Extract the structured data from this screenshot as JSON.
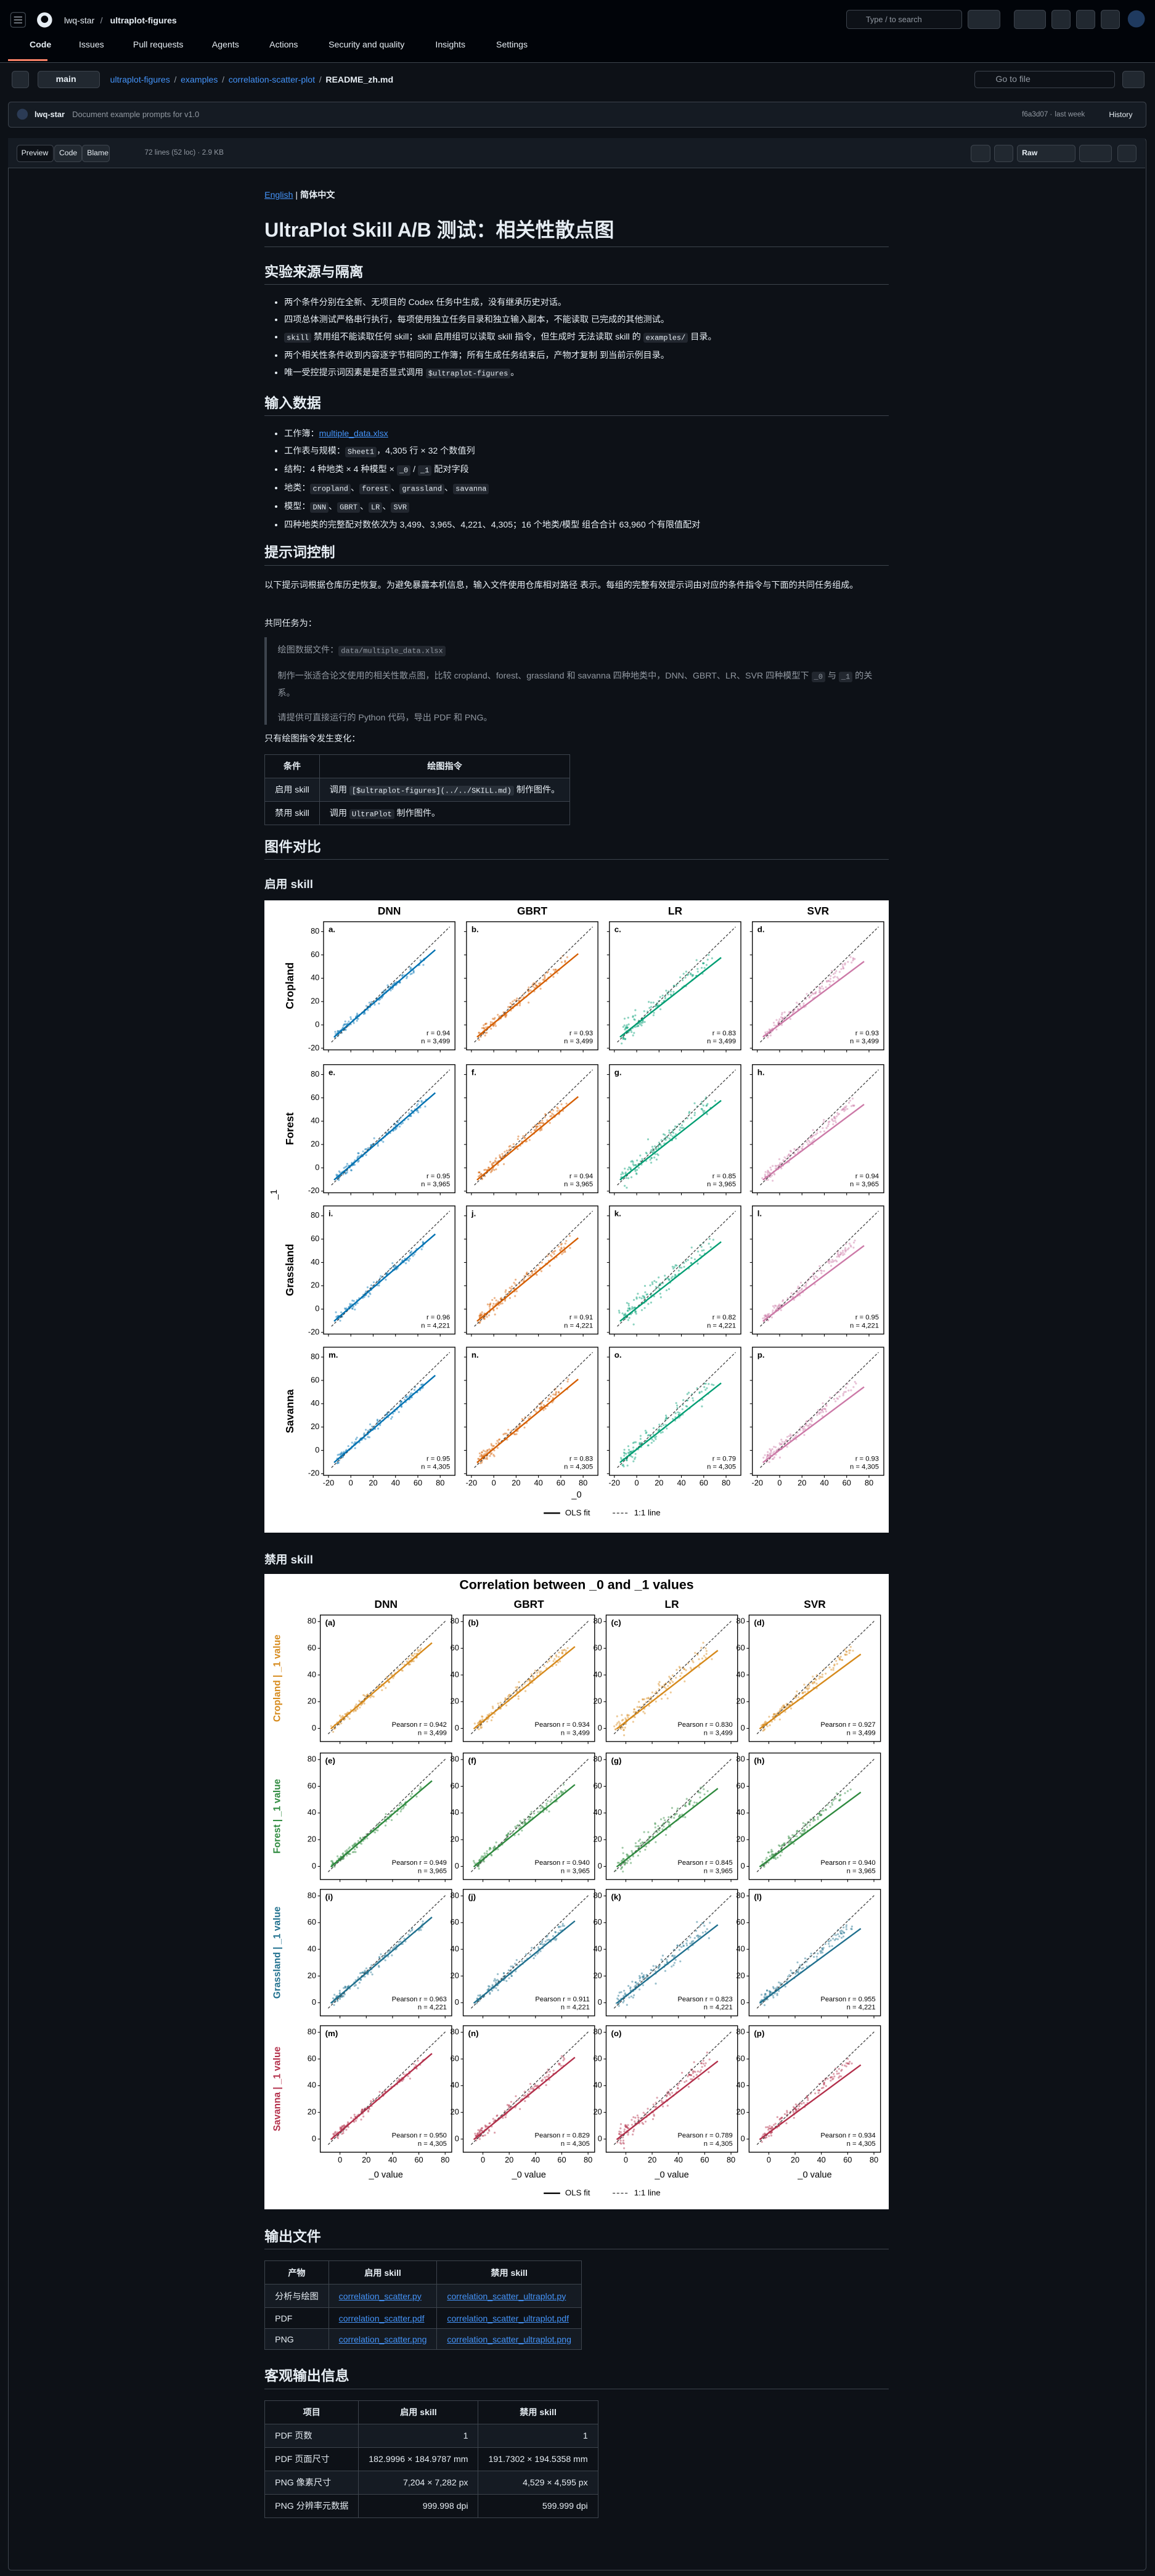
{
  "header": {
    "owner": "lwq-star",
    "repo": "ultraplot-figures",
    "search": "Type / to search",
    "tabs": [
      "Code",
      "Issues",
      "Pull requests",
      "Agents",
      "Actions",
      "Security and quality",
      "Insights",
      "Settings"
    ]
  },
  "file_bar": {
    "branch": "main",
    "path": [
      "ultraplot-figures",
      "examples",
      "correlation-scatter-plot",
      "README_zh.md"
    ],
    "go_to_file": "Go to file"
  },
  "commit": {
    "author": "lwq-star",
    "message": "Document example prompts for v1.0",
    "hash": "f6a3d07",
    "time": "last week",
    "history": "History"
  },
  "toolbar": {
    "views": [
      "Preview",
      "Code",
      "Blame"
    ],
    "info": "72 lines (52 loc) · 2.9 KB",
    "raw": "Raw"
  },
  "readme": {
    "lang": [
      "English",
      "简体中文"
    ],
    "title": "UltraPlot Skill A/B 测试：相关性散点图",
    "isolation": {
      "heading": "实验来源与隔离",
      "items": [
        [
          "两个条件分别在全新、无项目的 Codex 任务中生成，没有继承历史对话。"
        ],
        [
          "四项总体测试严格串行执行，每项使用独立任务目录和独立输入副本，不能读取 已完成的其他测试。"
        ],
        [
          {
            "code": "skill"
          },
          " 禁用组不能读取任何 skill；skill 启用组可以读取 skill 指令，但生成时 无法读取 skill 的 ",
          {
            "code": "examples/"
          },
          " 目录。"
        ],
        [
          "两个相关性条件收到内容逐字节相同的工作簿；所有生成任务结束后，产物才复制 到当前示例目录。"
        ],
        [
          "唯一受控提示词因素是是否显式调用 ",
          {
            "code": "$ultraplot-figures"
          },
          "。"
        ]
      ]
    },
    "input": {
      "heading": "输入数据",
      "items": [
        [
          "工作簿：",
          {
            "link": "multiple_data.xlsx"
          }
        ],
        [
          "工作表与规模：",
          {
            "code": "Sheet1"
          },
          "，4,305 行 × 32 个数值列"
        ],
        [
          "结构：4 种地类 × 4 种模型 × ",
          {
            "code": "_0"
          },
          " / ",
          {
            "code": "_1"
          },
          " 配对字段"
        ],
        [
          "地类：",
          {
            "code": "cropland"
          },
          "、",
          {
            "code": "forest"
          },
          "、",
          {
            "code": "grassland"
          },
          "、",
          {
            "code": "savanna"
          }
        ],
        [
          "模型：",
          {
            "code": "DNN"
          },
          "、",
          {
            "code": "GBRT"
          },
          "、",
          {
            "code": "LR"
          },
          "、",
          {
            "code": "SVR"
          }
        ],
        [
          "四种地类的完整配对数依次为 3,499、3,965、4,221、4,305；16 个地类/模型 组合合计 63,960 个有限值配对"
        ]
      ]
    },
    "prompt": {
      "heading": "提示词控制",
      "paragraph": "以下提示词根据仓库历史恢复。为避免暴露本机信息，输入文件使用仓库相对路径 表示。每组的完整有效提示词由对应的条件指令与下面的共同任务组成。",
      "task_label": "共同任务为：",
      "quote": [
        [
          "绘图数据文件：",
          {
            "code": "data/multiple_data.xlsx"
          }
        ],
        [
          "制作一张适合论文使用的相关性散点图，比较 cropland、forest、grassland 和 savanna 四种地类中，DNN、GBRT、LR、SVR 四种模型下 ",
          {
            "code": "_0"
          },
          " 与 ",
          {
            "code": "_1"
          },
          " 的关系。"
        ],
        [
          "请提供可直接运行的 Python 代码，导出 PDF 和 PNG。"
        ]
      ],
      "change_label": "只有绘图指令发生变化：",
      "table": {
        "header": [
          "条件",
          "绘图指令"
        ],
        "rows": [
          [
            [
              "启用 skill"
            ],
            [
              "调用 ",
              {
                "code": "[$ultraplot-figures](../../SKILL.md)"
              },
              " 制作图件。"
            ]
          ],
          [
            [
              "禁用 skill"
            ],
            [
              "调用 ",
              {
                "code": "UltraPlot"
              },
              " 制作图件。"
            ]
          ]
        ]
      }
    },
    "figures_heading": "图件对比",
    "figures": [
      {
        "caption": "启用 skill",
        "color_by": "column",
        "columns": [
          "DNN",
          "GBRT",
          "LR",
          "SVR"
        ],
        "rows": [
          "Cropland",
          "Forest",
          "Grassland",
          "Savanna"
        ],
        "colors": [
          "#0072b2",
          "#d55e00",
          "#009e73",
          "#cc79a7"
        ],
        "panel_labels": [
          "a.",
          "b.",
          "c.",
          "d.",
          "e.",
          "f.",
          "g.",
          "h.",
          "i.",
          "j.",
          "k.",
          "l.",
          "m.",
          "n.",
          "o.",
          "p."
        ],
        "r_labels": [
          "r = 0.94",
          "r = 0.93",
          "r = 0.83",
          "r = 0.93",
          "r = 0.95",
          "r = 0.94",
          "r = 0.85",
          "r = 0.94",
          "r = 0.96",
          "r = 0.91",
          "r = 0.82",
          "r = 0.95",
          "r = 0.95",
          "r = 0.83",
          "r = 0.79",
          "r = 0.93"
        ],
        "n_labels": [
          "n = 3,499",
          "n = 3,499",
          "n = 3,499",
          "n = 3,499",
          "n = 3,965",
          "n = 3,965",
          "n = 3,965",
          "n = 3,965",
          "n = 4,221",
          "n = 4,221",
          "n = 4,221",
          "n = 4,221",
          "n = 4,305",
          "n = 4,305",
          "n = 4,305",
          "n = 4,305"
        ],
        "yticks": [
          "80",
          "60",
          "40",
          "20",
          "0",
          "-20"
        ],
        "xticks": [
          "-20",
          "0",
          "20",
          "40",
          "60",
          "80"
        ],
        "xlabel": "_0",
        "ylabel": "_1",
        "legend": [
          "OLS fit",
          "1:1 line"
        ]
      },
      {
        "caption": "禁用 skill",
        "title": "Correlation between _0 and _1 values",
        "color_by": "row",
        "columns": [
          "DNN",
          "GBRT",
          "LR",
          "SVR"
        ],
        "rows": [
          "Cropland | _1 value",
          "Forest | _1 value",
          "Grassland | _1 value",
          "Savanna | _1 value"
        ],
        "colors": [
          "#d68a1c",
          "#2f8a3f",
          "#20708e",
          "#b3304b"
        ],
        "panel_labels": [
          "(a)",
          "(b)",
          "(c)",
          "(d)",
          "(e)",
          "(f)",
          "(g)",
          "(h)",
          "(i)",
          "(j)",
          "(k)",
          "(l)",
          "(m)",
          "(n)",
          "(o)",
          "(p)"
        ],
        "r_labels": [
          "Pearson r = 0.942",
          "Pearson r = 0.934",
          "Pearson r = 0.830",
          "Pearson r = 0.927",
          "Pearson r = 0.949",
          "Pearson r = 0.940",
          "Pearson r = 0.845",
          "Pearson r = 0.940",
          "Pearson r = 0.963",
          "Pearson r = 0.911",
          "Pearson r = 0.823",
          "Pearson r = 0.955",
          "Pearson r = 0.950",
          "Pearson r = 0.829",
          "Pearson r = 0.789",
          "Pearson r = 0.934"
        ],
        "n_labels": [
          "n = 3,499",
          "n = 3,499",
          "n = 3,499",
          "n = 3,499",
          "n = 3,965",
          "n = 3,965",
          "n = 3,965",
          "n = 3,965",
          "n = 4,221",
          "n = 4,221",
          "n = 4,221",
          "n = 4,221",
          "n = 4,305",
          "n = 4,305",
          "n = 4,305",
          "n = 4,305"
        ],
        "yticks": [
          "80",
          "60",
          "40",
          "20",
          "0"
        ],
        "xticks": [
          "0",
          "20",
          "40",
          "60",
          "80"
        ],
        "xlabel": "_0 value",
        "legend": [
          "OLS fit",
          "1:1 line"
        ]
      }
    ],
    "outputs": {
      "heading": "输出文件",
      "table": {
        "header": [
          "产物",
          "启用 skill",
          "禁用 skill"
        ],
        "rows": [
          [
            [
              "分析与绘图"
            ],
            [
              {
                "link": "correlation_scatter.py"
              }
            ],
            [
              {
                "link": "correlation_scatter_ultraplot.py"
              }
            ]
          ],
          [
            [
              "PDF"
            ],
            [
              {
                "link": "correlation_scatter.pdf"
              }
            ],
            [
              {
                "link": "correlation_scatter_ultraplot.pdf"
              }
            ]
          ],
          [
            [
              "PNG"
            ],
            [
              {
                "link": "correlation_scatter.png"
              }
            ],
            [
              {
                "link": "correlation_scatter_ultraplot.png"
              }
            ]
          ]
        ]
      }
    },
    "objective": {
      "heading": "客观输出信息",
      "table": {
        "header": [
          "项目",
          "启用 skill",
          "禁用 skill"
        ],
        "rows": [
          [
            [
              "PDF 页数"
            ],
            [
              "1"
            ],
            [
              "1"
            ]
          ],
          [
            [
              "PDF 页面尺寸"
            ],
            [
              "182.9996 × 184.9787 mm"
            ],
            [
              "191.7302 × 194.5358 mm"
            ]
          ],
          [
            [
              "PNG 像素尺寸"
            ],
            [
              "7,204 × 7,282 px"
            ],
            [
              "4,529 × 4,595 px"
            ]
          ],
          [
            [
              "PNG 分辨率元数据"
            ],
            [
              "999.998 dpi"
            ],
            [
              "599.999 dpi"
            ]
          ]
        ]
      }
    }
  }
}
